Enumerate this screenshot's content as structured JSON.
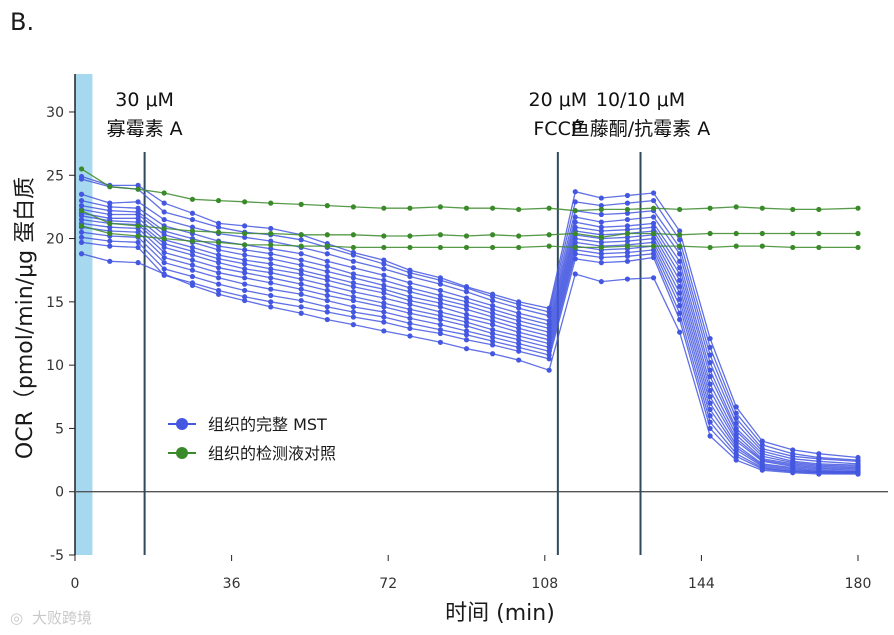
{
  "panel_label": "B.",
  "watermark": "大败跨境",
  "colors": {
    "blue": "#4457e0",
    "green": "#3a8a2a",
    "shade": "#a6d8ef",
    "axis": "#222222",
    "vline": "#2e4a5a"
  },
  "chart_data": {
    "type": "line",
    "title": "",
    "xlabel": "时间 (min)",
    "ylabel": "OCR（pmol/min/μg 蛋白质",
    "xlim": [
      0,
      180
    ],
    "ylim": [
      -5,
      33
    ],
    "xticks": [
      0,
      36,
      72,
      108,
      144,
      180
    ],
    "yticks": [
      -5,
      0,
      5,
      10,
      15,
      20,
      25,
      30
    ],
    "shaded_region": [
      0,
      4
    ],
    "injections": [
      {
        "x": 16,
        "line1": "30 μM",
        "line2": "寡霉素 A"
      },
      {
        "x": 111,
        "line1": "20 μM",
        "line2": "FCCP"
      },
      {
        "x": 130,
        "line1": "10/10 μM",
        "line2": "鱼藤酮/抗霉素 A"
      }
    ],
    "legend": [
      {
        "label": "组织的完整 MST",
        "color": "#4457e0"
      },
      {
        "label": "组织的检测液对照",
        "color": "#3a8a2a"
      }
    ],
    "x": [
      1.5,
      8,
      14.5,
      20.5,
      27,
      33,
      39,
      45,
      52,
      58,
      64,
      71,
      77,
      84,
      90,
      96,
      102,
      109,
      115,
      121,
      127,
      133,
      139,
      146,
      152,
      158,
      165,
      171,
      180
    ],
    "series": [
      {
        "name": "组织的完整 MST",
        "group": "blue",
        "values": [
          24.9,
          24.2,
          24.2,
          22.8,
          22.0,
          21.2,
          21.0,
          20.8,
          20.3,
          19.6,
          18.9,
          18.3,
          17.5,
          16.9,
          16.2,
          15.6,
          15.0,
          14.5,
          23.7,
          23.2,
          23.4,
          23.6,
          20.6,
          12.1,
          6.7,
          4.0,
          3.3,
          3.0,
          2.7
        ]
      },
      {
        "name": "组织的完整 MST",
        "group": "blue",
        "values": [
          24.7,
          24.1,
          23.9,
          22.1,
          21.5,
          20.9,
          20.5,
          20.3,
          19.9,
          19.3,
          18.7,
          18.0,
          17.3,
          16.7,
          16.1,
          15.4,
          14.8,
          14.2,
          22.9,
          22.6,
          22.8,
          23.0,
          19.9,
          11.4,
          6.2,
          3.7,
          3.0,
          2.7,
          2.5
        ]
      },
      {
        "name": "组织的完整 MST",
        "group": "blue",
        "values": [
          23.5,
          22.8,
          22.9,
          21.5,
          20.9,
          20.4,
          20.1,
          19.8,
          19.3,
          18.8,
          18.2,
          17.6,
          17.0,
          16.4,
          15.8,
          15.1,
          14.5,
          13.9,
          22.2,
          21.9,
          22.0,
          22.2,
          19.3,
          10.8,
          5.8,
          3.4,
          2.8,
          2.6,
          2.4
        ]
      },
      {
        "name": "组织的完整 MST",
        "group": "blue",
        "values": [
          23.0,
          22.5,
          22.4,
          21.0,
          20.4,
          19.8,
          19.5,
          19.2,
          18.8,
          18.2,
          17.7,
          17.1,
          16.5,
          15.9,
          15.3,
          14.7,
          14.1,
          13.5,
          21.7,
          21.3,
          21.5,
          21.7,
          18.8,
          10.2,
          5.4,
          3.2,
          2.6,
          2.4,
          2.2
        ]
      },
      {
        "name": "组织的完整 MST",
        "group": "blue",
        "values": [
          22.6,
          22.2,
          22.1,
          20.6,
          20.0,
          19.4,
          19.1,
          18.8,
          18.3,
          17.8,
          17.2,
          16.7,
          16.1,
          15.5,
          15.0,
          14.4,
          13.8,
          13.2,
          21.3,
          20.9,
          21.0,
          21.2,
          18.2,
          9.6,
          5.0,
          3.0,
          2.4,
          2.2,
          2.1
        ]
      },
      {
        "name": "组织的完整 MST",
        "group": "blue",
        "values": [
          22.3,
          21.9,
          21.9,
          20.3,
          19.7,
          19.1,
          18.7,
          18.4,
          17.9,
          17.4,
          16.9,
          16.3,
          15.8,
          15.2,
          14.7,
          14.1,
          13.5,
          12.9,
          20.9,
          20.6,
          20.7,
          20.9,
          17.7,
          9.1,
          4.8,
          2.8,
          2.3,
          2.1,
          2.0
        ]
      },
      {
        "name": "组织的完整 MST",
        "group": "blue",
        "values": [
          22.0,
          21.6,
          21.6,
          19.9,
          19.3,
          18.7,
          18.3,
          18.0,
          17.5,
          17.0,
          16.5,
          16.0,
          15.4,
          14.9,
          14.4,
          13.8,
          13.2,
          12.6,
          20.6,
          20.3,
          20.4,
          20.6,
          17.2,
          8.5,
          4.5,
          2.6,
          2.2,
          2.0,
          1.9
        ]
      },
      {
        "name": "组织的完整 MST",
        "group": "blue",
        "values": [
          21.8,
          21.4,
          21.3,
          19.6,
          19.0,
          18.4,
          18.0,
          17.6,
          17.2,
          16.7,
          16.2,
          15.7,
          15.1,
          14.6,
          14.0,
          13.5,
          12.9,
          12.3,
          20.3,
          20.0,
          20.1,
          20.3,
          16.7,
          8.0,
          4.2,
          2.5,
          2.1,
          1.9,
          1.8
        ]
      },
      {
        "name": "组织的完整 MST",
        "group": "blue",
        "values": [
          21.5,
          21.2,
          21.1,
          19.3,
          18.7,
          18.1,
          17.6,
          17.3,
          16.8,
          16.3,
          15.8,
          15.3,
          14.8,
          14.2,
          13.7,
          13.2,
          12.6,
          12.0,
          20.0,
          19.7,
          19.8,
          20.0,
          16.2,
          7.5,
          4.0,
          2.4,
          2.0,
          1.8,
          1.7
        ]
      },
      {
        "name": "组织的完整 MST",
        "group": "blue",
        "values": [
          21.2,
          20.9,
          20.8,
          18.9,
          18.3,
          17.7,
          17.3,
          16.9,
          16.4,
          15.9,
          15.4,
          14.9,
          14.4,
          13.9,
          13.4,
          12.8,
          12.3,
          11.7,
          19.7,
          19.4,
          19.5,
          19.7,
          15.7,
          7.0,
          3.7,
          2.2,
          1.9,
          1.7,
          1.6
        ]
      },
      {
        "name": "组织的完整 MST",
        "group": "blue",
        "values": [
          20.9,
          20.6,
          20.5,
          18.5,
          17.9,
          17.3,
          16.9,
          16.5,
          16.0,
          15.5,
          15.1,
          14.6,
          14.1,
          13.6,
          13.1,
          12.5,
          12.0,
          11.4,
          19.4,
          19.1,
          19.2,
          19.4,
          15.2,
          6.5,
          3.5,
          2.1,
          1.8,
          1.6,
          1.6
        ]
      },
      {
        "name": "组织的完整 MST",
        "group": "blue",
        "values": [
          20.5,
          20.2,
          20.1,
          18.1,
          17.5,
          16.9,
          16.4,
          16.0,
          15.6,
          15.1,
          14.6,
          14.2,
          13.7,
          13.2,
          12.7,
          12.2,
          11.7,
          11.1,
          19.1,
          18.8,
          18.9,
          19.1,
          14.7,
          6.0,
          3.3,
          2.0,
          1.7,
          1.6,
          1.5
        ]
      },
      {
        "name": "组织的完整 MST",
        "group": "blue",
        "values": [
          20.1,
          19.8,
          19.7,
          17.6,
          17.0,
          16.4,
          15.9,
          15.5,
          15.1,
          14.6,
          14.2,
          13.8,
          13.3,
          12.8,
          12.4,
          11.9,
          11.4,
          10.8,
          18.8,
          18.5,
          18.6,
          18.8,
          14.1,
          5.5,
          3.0,
          1.9,
          1.6,
          1.5,
          1.5
        ]
      },
      {
        "name": "组织的完整 MST",
        "group": "blue",
        "values": [
          19.7,
          19.4,
          19.3,
          17.1,
          16.5,
          15.9,
          15.4,
          15.0,
          14.6,
          14.2,
          13.8,
          13.4,
          12.9,
          12.5,
          12.0,
          11.6,
          11.1,
          10.5,
          18.4,
          18.1,
          18.2,
          18.5,
          13.6,
          5.0,
          2.8,
          1.8,
          1.6,
          1.5,
          1.4
        ]
      },
      {
        "name": "组织的完整 MST",
        "group": "blue",
        "values": [
          18.8,
          18.2,
          18.1,
          17.2,
          16.3,
          15.6,
          15.1,
          14.6,
          14.1,
          13.6,
          13.2,
          12.7,
          12.3,
          11.8,
          11.3,
          10.9,
          10.4,
          9.6,
          17.2,
          16.6,
          16.8,
          16.9,
          12.6,
          4.4,
          2.5,
          1.7,
          1.5,
          1.4,
          1.4
        ]
      },
      {
        "name": "组织的检测液对照",
        "group": "green",
        "values": [
          25.5,
          24.1,
          23.9,
          23.6,
          23.1,
          23.0,
          22.9,
          22.8,
          22.7,
          22.6,
          22.5,
          22.4,
          22.4,
          22.5,
          22.4,
          22.4,
          22.3,
          22.4,
          22.2,
          22.3,
          22.3,
          22.4,
          22.3,
          22.4,
          22.5,
          22.4,
          22.3,
          22.3,
          22.4
        ]
      },
      {
        "name": "组织的检测液对照",
        "group": "green",
        "values": [
          22.2,
          21.2,
          21.0,
          20.8,
          20.6,
          20.5,
          20.4,
          20.4,
          20.3,
          20.3,
          20.3,
          20.2,
          20.2,
          20.3,
          20.2,
          20.3,
          20.2,
          20.3,
          20.4,
          20.1,
          20.4,
          20.4,
          20.3,
          20.4,
          20.4,
          20.4,
          20.4,
          20.4,
          20.4
        ]
      },
      {
        "name": "组织的检测液对照",
        "group": "green",
        "values": [
          21.0,
          20.4,
          20.2,
          20.0,
          19.8,
          19.7,
          19.5,
          19.5,
          19.4,
          19.4,
          19.3,
          19.3,
          19.3,
          19.3,
          19.3,
          19.3,
          19.3,
          19.4,
          19.3,
          19.3,
          19.4,
          19.4,
          19.4,
          19.3,
          19.4,
          19.4,
          19.3,
          19.3,
          19.3
        ]
      }
    ]
  }
}
